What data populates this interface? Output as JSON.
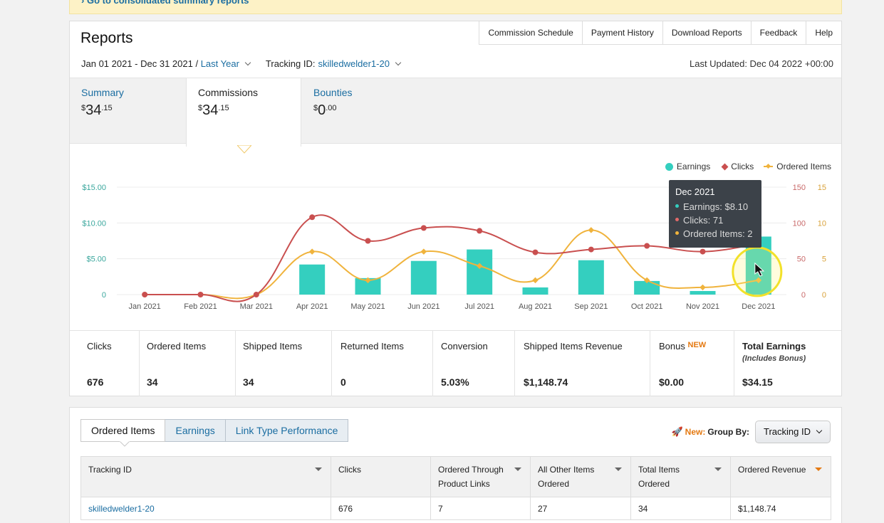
{
  "banner": {
    "text": "Go to consolidated summary reports"
  },
  "header": {
    "title": "Reports",
    "links": [
      "Commission Schedule",
      "Payment History",
      "Download Reports",
      "Feedback",
      "Help"
    ],
    "date_range": "Jan 01 2021 - Dec 31 2021",
    "date_sep": " / ",
    "period": "Last Year",
    "tracking_label": "Tracking ID:",
    "tracking_value": "skilledwelder1-20",
    "last_updated": "Last Updated: Dec 04 2022 +00:00"
  },
  "summary_tabs": [
    {
      "label": "Summary",
      "currency": "$",
      "whole": "34",
      "cents": ".15"
    },
    {
      "label": "Commissions",
      "currency": "$",
      "whole": "34",
      "cents": ".15"
    },
    {
      "label": "Bounties",
      "currency": "$",
      "whole": "0",
      "cents": ".00"
    }
  ],
  "legend": {
    "earnings": "Earnings",
    "clicks": "Clicks",
    "ordered": "Ordered Items"
  },
  "tooltip": {
    "title": "Dec 2021",
    "earnings": "Earnings: $8.10",
    "clicks": "Clicks: 71",
    "ordered": "Ordered Items: 2"
  },
  "chart_data": {
    "type": "bar",
    "categories": [
      "Jan 2021",
      "Feb 2021",
      "Mar 2021",
      "Apr 2021",
      "May 2021",
      "Jun 2021",
      "Jul 2021",
      "Aug 2021",
      "Sep 2021",
      "Oct 2021",
      "Nov 2021",
      "Dec 2021"
    ],
    "series": [
      {
        "name": "Earnings",
        "type": "bar",
        "axis": "left",
        "values": [
          0,
          0,
          0,
          4.2,
          2.3,
          4.7,
          6.3,
          1.0,
          4.8,
          1.9,
          0.5,
          8.1
        ]
      },
      {
        "name": "Clicks",
        "type": "line",
        "axis": "right1",
        "values": [
          0,
          0,
          0,
          108,
          75,
          93,
          89,
          59,
          63,
          68,
          60,
          71
        ]
      },
      {
        "name": "Ordered Items",
        "type": "line",
        "axis": "right2",
        "values": [
          0,
          0,
          0,
          6,
          2,
          6,
          4,
          2,
          9,
          2,
          1,
          2
        ]
      }
    ],
    "y_left": {
      "ticks": [
        "0",
        "$5.00",
        "$10.00",
        "$15.00"
      ],
      "max": 15
    },
    "y_right1": {
      "ticks": [
        "0",
        "50",
        "100",
        "150"
      ],
      "max": 150
    },
    "y_right2": {
      "ticks": [
        "0",
        "5",
        "10",
        "15"
      ],
      "max": 15
    },
    "colors": {
      "earnings": "#34cfbf",
      "clicks": "#c94f4f",
      "ordered": "#f0b33c"
    }
  },
  "stats": [
    {
      "label": "Clicks",
      "value": "676"
    },
    {
      "label": "Ordered Items",
      "value": "34"
    },
    {
      "label": "Shipped Items",
      "value": "34"
    },
    {
      "label": "Returned Items",
      "value": "0"
    },
    {
      "label": "Conversion",
      "value": "5.03%"
    },
    {
      "label": "Shipped Items Revenue",
      "value": "$1,148.74"
    },
    {
      "label": "Bonus",
      "badge": "NEW",
      "value": "$0.00"
    },
    {
      "label": "Total Earnings",
      "sublabel": "(Includes Bonus)",
      "value": "$34.15"
    }
  ],
  "bottom": {
    "tabs": [
      "Ordered Items",
      "Earnings",
      "Link Type Performance"
    ],
    "new_label": "New:",
    "group_by_label": "Group By:",
    "group_by_value": "Tracking ID",
    "columns": [
      {
        "line1": "Tracking ID",
        "line2": ""
      },
      {
        "line1": "Clicks",
        "line2": ""
      },
      {
        "line1": "Ordered Through",
        "line2": "Product Links"
      },
      {
        "line1": "All Other Items",
        "line2": "Ordered"
      },
      {
        "line1": "Total Items",
        "line2": "Ordered"
      },
      {
        "line1": "Ordered Revenue",
        "line2": ""
      }
    ],
    "rows": [
      [
        "skilledwelder1-20",
        "676",
        "7",
        "27",
        "34",
        "$1,148.74"
      ]
    ]
  }
}
